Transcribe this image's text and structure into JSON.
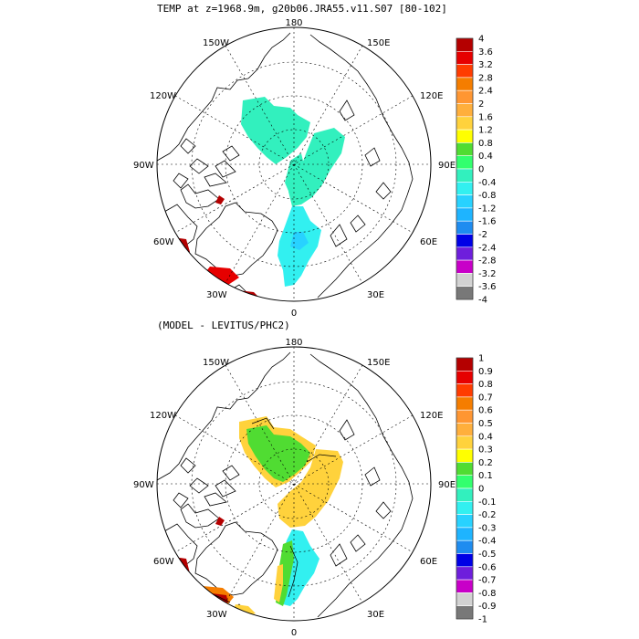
{
  "titles": {
    "top": "TEMP at z=1968.9m, g20b06.JRA55.v11.S07 [80-102]",
    "bottom": "(MODEL - LEVITUS/PHC2)"
  },
  "longitude_labels": [
    "180",
    "150E",
    "120E",
    "90E",
    "60E",
    "30E",
    "0",
    "30W",
    "60W",
    "90W",
    "120W",
    "150W"
  ],
  "panels": [
    {
      "id": "top",
      "colorbar": {
        "levels": [
          "4",
          "3.6",
          "3.2",
          "2.8",
          "2.4",
          "2",
          "1.6",
          "1.2",
          "0.8",
          "0.4",
          "0",
          "-0.4",
          "-0.8",
          "-1.2",
          "-1.6",
          "-2",
          "-2.4",
          "-2.8",
          "-3.2",
          "-3.6",
          "-4"
        ],
        "colors": [
          "#b40000",
          "#e60000",
          "#ff3c00",
          "#f57d00",
          "#ff9632",
          "#ffaf3c",
          "#ffd23c",
          "#ffff00",
          "#50dc32",
          "#32ff6e",
          "#32f0be",
          "#32f0f0",
          "#28d2ff",
          "#1eb4ff",
          "#1e8cf0",
          "#0000e6",
          "#6e1edc",
          "#c800c8",
          "#d2d2d2",
          "#787878"
        ]
      }
    },
    {
      "id": "bottom",
      "colorbar": {
        "levels": [
          "1",
          "0.9",
          "0.8",
          "0.7",
          "0.6",
          "0.5",
          "0.4",
          "0.3",
          "0.2",
          "0.1",
          "0",
          "-0.1",
          "-0.2",
          "-0.3",
          "-0.4",
          "-0.5",
          "-0.6",
          "-0.7",
          "-0.8",
          "-0.9",
          "-1"
        ],
        "colors": [
          "#b40000",
          "#e60000",
          "#ff3c00",
          "#f57d00",
          "#ff9632",
          "#ffaf3c",
          "#ffd23c",
          "#ffff00",
          "#50dc32",
          "#32ff6e",
          "#32f0be",
          "#32f0f0",
          "#28d2ff",
          "#1eb4ff",
          "#1e8cf0",
          "#0000e6",
          "#6e1edc",
          "#c800c8",
          "#d2d2d2",
          "#787878"
        ]
      }
    }
  ]
}
